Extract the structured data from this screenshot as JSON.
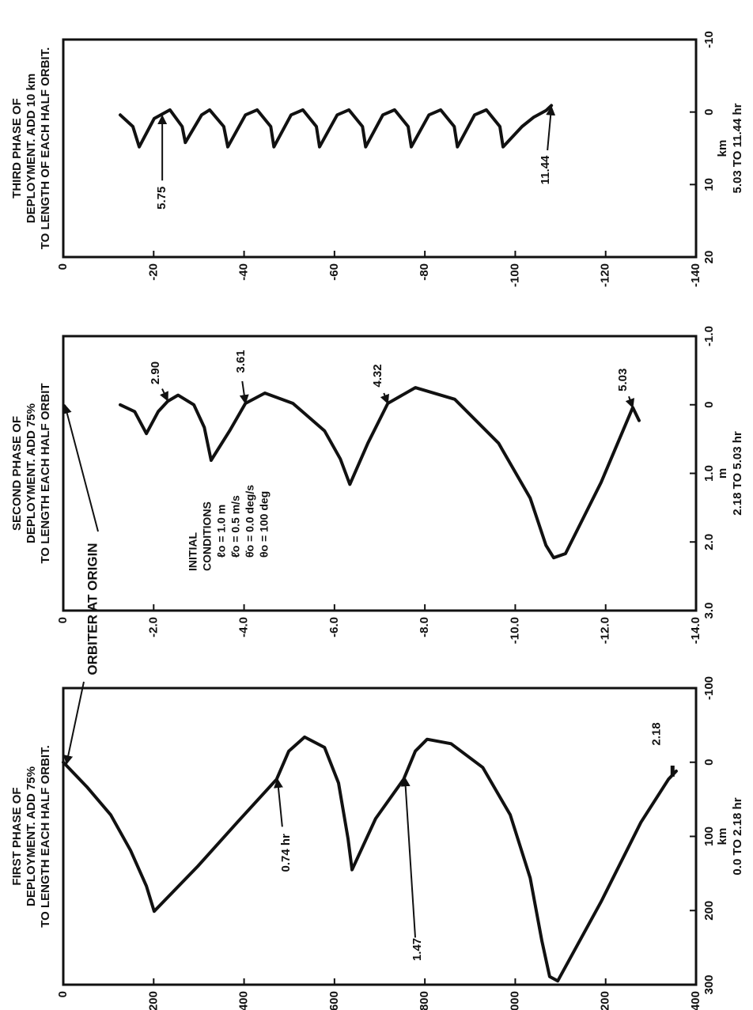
{
  "callout": "ORBITER AT ORIGIN",
  "chart_data": [
    {
      "type": "line",
      "title": [
        "FIRST PHASE OF",
        "DEPLOYMENT. ADD 75%",
        "TO LENGTH EACH HALF ORBIT."
      ],
      "xlabel": [
        "km",
        "0.0 TO 2.18 hr"
      ],
      "xlim": [
        300,
        -100
      ],
      "xticks": [
        300,
        200,
        100,
        0,
        -100
      ],
      "ylim": [
        -1400,
        0
      ],
      "yticks": [
        0,
        -200,
        -400,
        -600,
        -800,
        -1000,
        -1200,
        -1400
      ],
      "color": "#111111",
      "x": [
        0,
        33,
        71,
        119,
        167,
        201,
        140,
        81,
        23,
        -15,
        -34,
        -20,
        28,
        103,
        145,
        76,
        23,
        -15,
        -31,
        -25,
        7,
        71,
        156,
        241,
        289,
        295,
        188,
        81,
        23,
        12
      ],
      "values": [
        0,
        -52,
        -105,
        -149,
        -184,
        -201,
        -298,
        -385,
        -472,
        -499,
        -534,
        -578,
        -609,
        -630,
        -639,
        -691,
        -753,
        -779,
        -805,
        -858,
        -928,
        -989,
        -1033,
        -1059,
        -1076,
        -1094,
        -1190,
        -1278,
        -1339,
        -1356
      ],
      "annotations": [
        {
          "text": "0.74 hr",
          "x": 23,
          "y": -474
        },
        {
          "text": "1.47",
          "x": 21,
          "y": -756
        },
        {
          "text": "2.18",
          "x": 12,
          "y": -1348
        }
      ]
    },
    {
      "type": "line",
      "title": [
        "SECOND PHASE OF",
        "DEPLOYMENT. ADD 75%",
        "TO LENGTH EACH HALF ORBIT"
      ],
      "xlabel": [
        "m",
        "2.18 TO 5.03 hr"
      ],
      "xlim": [
        3,
        -1
      ],
      "xticks": [
        {
          "value": 3,
          "label": "3.0"
        },
        {
          "value": 2,
          "label": "2.0"
        },
        {
          "value": 1,
          "label": "1.0"
        },
        0,
        {
          "value": -1,
          "label": "-1.0"
        }
      ],
      "ylim": [
        -14,
        0
      ],
      "yticks": [
        0,
        {
          "value": -2,
          "label": "-2.0"
        },
        {
          "value": -4,
          "label": "-4.0"
        },
        {
          "value": -6,
          "label": "-6.0"
        },
        {
          "value": -8,
          "label": "-8.0"
        },
        {
          "value": -10,
          "label": "-10.0"
        },
        {
          "value": -12,
          "label": "-12.0"
        },
        {
          "value": -14,
          "label": "-14.0"
        }
      ],
      "color": "#111111",
      "x": [
        0,
        0.1,
        0.42,
        0.1,
        -0.05,
        -0.14,
        0,
        0.33,
        0.81,
        0.38,
        -0.02,
        -0.17,
        -0.02,
        0.38,
        0.79,
        1.16,
        0.56,
        -0.02,
        -0.25,
        -0.08,
        0.56,
        1.36,
        2.05,
        2.23,
        2.17,
        1.13,
        0.04,
        0.23
      ],
      "values": [
        -1.26,
        -1.58,
        -1.84,
        -2.1,
        -2.31,
        -2.54,
        -2.89,
        -3.12,
        -3.27,
        -3.68,
        -4.03,
        -4.46,
        -5.08,
        -5.78,
        -6.13,
        -6.34,
        -6.74,
        -7.18,
        -7.79,
        -8.66,
        -9.63,
        -10.33,
        -10.68,
        -10.85,
        -11.11,
        -11.9,
        -12.6,
        -12.74
      ],
      "annotations": [
        {
          "text": "2.90",
          "x": -0.06,
          "y": -2.31
        },
        {
          "text": "3.61",
          "x": -0.02,
          "y": -4.03
        },
        {
          "text": "4.32",
          "x": -0.02,
          "y": -7.18
        },
        {
          "text": "5.03",
          "x": 0.04,
          "y": -12.6
        }
      ],
      "notes": [
        "INITIAL",
        "CONDITIONS",
        "ℓo = 1.0 m",
        "ℓ̇o = 0.5 m/s",
        "θ̇o = 0.0 deg/s",
        "θo = 100 deg"
      ]
    },
    {
      "type": "line",
      "title": [
        "THIRD PHASE OF",
        "DEPLOYMENT. ADD 10 km",
        "TO LENGTH OF EACH HALF ORBIT."
      ],
      "xlabel": [
        "km",
        "5.03 TO 11.44 hr"
      ],
      "xlim": [
        20,
        -10
      ],
      "xticks": [
        20,
        10,
        0,
        -10
      ],
      "ylim": [
        -140,
        0
      ],
      "yticks": [
        0,
        -20,
        -40,
        -60,
        -80,
        -100,
        -120,
        -140
      ],
      "color": "#111111",
      "x": [
        0.4,
        2.0,
        4.8,
        0.9,
        -0.3,
        2.0,
        4.2,
        0.4,
        -0.3,
        2.0,
        4.8,
        0.4,
        -0.3,
        2.0,
        4.8,
        0.4,
        -0.3,
        2.0,
        4.8,
        0.4,
        -0.3,
        2.0,
        4.8,
        0.4,
        -0.3,
        2.0,
        4.8,
        0.4,
        -0.3,
        2.0,
        4.8,
        0.4,
        -0.3,
        2.0,
        4.8,
        2.0,
        0.7,
        -0.2,
        -0.9
      ],
      "values": [
        -12.6,
        -15.4,
        -16.8,
        -20.1,
        -23.6,
        -26.3,
        -27.0,
        -30.6,
        -32.4,
        -35.5,
        -36.4,
        -40.3,
        -42.9,
        -45.9,
        -46.6,
        -50.4,
        -53.0,
        -56.0,
        -56.7,
        -60.6,
        -63.2,
        -66.2,
        -66.9,
        -70.7,
        -73.3,
        -76.3,
        -77.0,
        -80.9,
        -83.5,
        -86.5,
        -87.2,
        -91.0,
        -93.6,
        -96.6,
        -97.3,
        -101.5,
        -104.1,
        -106.8,
        -108.0
      ],
      "annotations": [
        {
          "text": "5.75",
          "x": 0.5,
          "y": -21.9
        },
        {
          "text": "11.44",
          "x": -0.73,
          "y": -108.0
        }
      ]
    }
  ]
}
